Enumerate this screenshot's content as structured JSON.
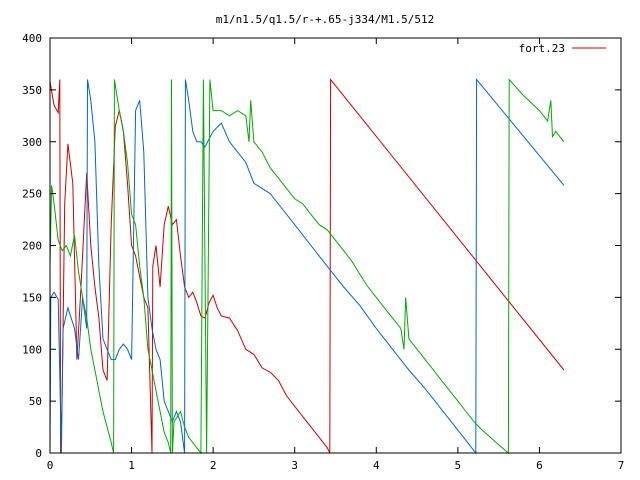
{
  "chart_data": {
    "type": "line",
    "title": "m1/n1.5/q1.5/r-+.65-j334/M1.5/512",
    "xlabel": "",
    "ylabel": "",
    "xlim": [
      0,
      7
    ],
    "ylim": [
      0,
      400
    ],
    "x_ticks": [
      0,
      1,
      2,
      3,
      4,
      5,
      6,
      7
    ],
    "y_ticks": [
      0,
      50,
      100,
      150,
      200,
      250,
      300,
      350,
      400
    ],
    "grid": false,
    "legend_position": "top-right",
    "series": [
      {
        "name": "fort.23",
        "color": "#cc0000",
        "points": [
          [
            0.0,
            358
          ],
          [
            0.05,
            335
          ],
          [
            0.1,
            328
          ],
          [
            0.12,
            360
          ],
          [
            0.13,
            0
          ],
          [
            0.15,
            60
          ],
          [
            0.18,
            240
          ],
          [
            0.22,
            298
          ],
          [
            0.28,
            260
          ],
          [
            0.33,
            90
          ],
          [
            0.38,
            160
          ],
          [
            0.45,
            270
          ],
          [
            0.5,
            200
          ],
          [
            0.55,
            160
          ],
          [
            0.6,
            130
          ],
          [
            0.65,
            80
          ],
          [
            0.7,
            70
          ],
          [
            0.75,
            220
          ],
          [
            0.8,
            315
          ],
          [
            0.85,
            330
          ],
          [
            0.9,
            310
          ],
          [
            0.95,
            260
          ],
          [
            1.0,
            200
          ],
          [
            1.05,
            190
          ],
          [
            1.1,
            170
          ],
          [
            1.15,
            150
          ],
          [
            1.2,
            140
          ],
          [
            1.25,
            0
          ],
          [
            1.26,
            180
          ],
          [
            1.3,
            200
          ],
          [
            1.35,
            160
          ],
          [
            1.4,
            220
          ],
          [
            1.45,
            238
          ],
          [
            1.5,
            220
          ],
          [
            1.55,
            225
          ],
          [
            1.6,
            190
          ],
          [
            1.65,
            160
          ],
          [
            1.7,
            150
          ],
          [
            1.75,
            155
          ],
          [
            1.8,
            145
          ],
          [
            1.85,
            132
          ],
          [
            1.9,
            130
          ],
          [
            1.95,
            145
          ],
          [
            2.0,
            152
          ],
          [
            2.05,
            140
          ],
          [
            2.1,
            132
          ],
          [
            2.2,
            130
          ],
          [
            2.3,
            118
          ],
          [
            2.4,
            100
          ],
          [
            2.5,
            95
          ],
          [
            2.6,
            82
          ],
          [
            2.7,
            78
          ],
          [
            2.8,
            70
          ],
          [
            2.9,
            55
          ],
          [
            3.0,
            45
          ],
          [
            3.1,
            35
          ],
          [
            3.2,
            25
          ],
          [
            3.3,
            15
          ],
          [
            3.4,
            5
          ],
          [
            3.43,
            0
          ],
          [
            3.44,
            360
          ],
          [
            6.3,
            80
          ]
        ]
      },
      {
        "name": "",
        "color": "#0066cc",
        "points": [
          [
            0.0,
            0
          ],
          [
            0.01,
            150
          ],
          [
            0.05,
            155
          ],
          [
            0.1,
            148
          ],
          [
            0.14,
            0
          ],
          [
            0.16,
            120
          ],
          [
            0.22,
            140
          ],
          [
            0.3,
            120
          ],
          [
            0.35,
            90
          ],
          [
            0.4,
            150
          ],
          [
            0.45,
            120
          ],
          [
            0.46,
            360
          ],
          [
            0.5,
            340
          ],
          [
            0.55,
            300
          ],
          [
            0.6,
            180
          ],
          [
            0.65,
            110
          ],
          [
            0.7,
            100
          ],
          [
            0.75,
            90
          ],
          [
            0.8,
            90
          ],
          [
            0.85,
            100
          ],
          [
            0.9,
            105
          ],
          [
            0.95,
            100
          ],
          [
            1.0,
            90
          ],
          [
            1.05,
            330
          ],
          [
            1.1,
            340
          ],
          [
            1.15,
            290
          ],
          [
            1.2,
            150
          ],
          [
            1.25,
            120
          ],
          [
            1.3,
            100
          ],
          [
            1.35,
            90
          ],
          [
            1.4,
            50
          ],
          [
            1.45,
            40
          ],
          [
            1.5,
            30
          ],
          [
            1.55,
            40
          ],
          [
            1.6,
            30
          ],
          [
            1.65,
            0
          ],
          [
            1.66,
            360
          ],
          [
            1.7,
            340
          ],
          [
            1.75,
            310
          ],
          [
            1.8,
            300
          ],
          [
            1.85,
            300
          ],
          [
            1.9,
            295
          ],
          [
            2.0,
            310
          ],
          [
            2.1,
            318
          ],
          [
            2.2,
            300
          ],
          [
            2.3,
            290
          ],
          [
            2.4,
            280
          ],
          [
            2.5,
            260
          ],
          [
            2.6,
            255
          ],
          [
            2.7,
            250
          ],
          [
            2.8,
            240
          ],
          [
            3.0,
            220
          ],
          [
            3.2,
            200
          ],
          [
            3.4,
            180
          ],
          [
            3.6,
            160
          ],
          [
            3.8,
            142
          ],
          [
            4.0,
            120
          ],
          [
            4.2,
            100
          ],
          [
            4.4,
            80
          ],
          [
            4.6,
            62
          ],
          [
            4.8,
            42
          ],
          [
            5.0,
            22
          ],
          [
            5.22,
            0
          ],
          [
            5.23,
            360
          ],
          [
            6.3,
            258
          ]
        ]
      },
      {
        "name": "",
        "color": "#00aa00",
        "points": [
          [
            0.0,
            180
          ],
          [
            0.02,
            258
          ],
          [
            0.05,
            240
          ],
          [
            0.1,
            205
          ],
          [
            0.15,
            195
          ],
          [
            0.2,
            200
          ],
          [
            0.25,
            190
          ],
          [
            0.3,
            210
          ],
          [
            0.35,
            175
          ],
          [
            0.4,
            150
          ],
          [
            0.45,
            130
          ],
          [
            0.5,
            100
          ],
          [
            0.55,
            80
          ],
          [
            0.6,
            60
          ],
          [
            0.65,
            40
          ],
          [
            0.7,
            25
          ],
          [
            0.75,
            10
          ],
          [
            0.78,
            0
          ],
          [
            0.79,
            360
          ],
          [
            0.85,
            330
          ],
          [
            0.9,
            310
          ],
          [
            0.95,
            280
          ],
          [
            1.0,
            230
          ],
          [
            1.05,
            220
          ],
          [
            1.1,
            180
          ],
          [
            1.15,
            150
          ],
          [
            1.2,
            100
          ],
          [
            1.25,
            80
          ],
          [
            1.3,
            60
          ],
          [
            1.35,
            40
          ],
          [
            1.4,
            20
          ],
          [
            1.45,
            10
          ],
          [
            1.48,
            0
          ],
          [
            1.49,
            360
          ],
          [
            1.5,
            0
          ],
          [
            1.52,
            30
          ],
          [
            1.6,
            40
          ],
          [
            1.65,
            25
          ],
          [
            1.7,
            15
          ],
          [
            1.75,
            10
          ],
          [
            1.8,
            5
          ],
          [
            1.85,
            0
          ],
          [
            1.88,
            360
          ],
          [
            1.92,
            0
          ],
          [
            1.96,
            360
          ],
          [
            2.0,
            330
          ],
          [
            2.1,
            330
          ],
          [
            2.2,
            325
          ],
          [
            2.3,
            330
          ],
          [
            2.4,
            325
          ],
          [
            2.44,
            300
          ],
          [
            2.46,
            340
          ],
          [
            2.5,
            300
          ],
          [
            2.6,
            290
          ],
          [
            2.7,
            275
          ],
          [
            2.8,
            265
          ],
          [
            2.9,
            255
          ],
          [
            3.0,
            245
          ],
          [
            3.1,
            240
          ],
          [
            3.2,
            230
          ],
          [
            3.3,
            220
          ],
          [
            3.4,
            215
          ],
          [
            3.5,
            205
          ],
          [
            3.6,
            195
          ],
          [
            3.7,
            185
          ],
          [
            3.8,
            172
          ],
          [
            3.9,
            160
          ],
          [
            4.0,
            150
          ],
          [
            4.1,
            140
          ],
          [
            4.2,
            130
          ],
          [
            4.3,
            120
          ],
          [
            4.34,
            100
          ],
          [
            4.36,
            150
          ],
          [
            4.4,
            110
          ],
          [
            4.5,
            100
          ],
          [
            4.6,
            90
          ],
          [
            4.7,
            80
          ],
          [
            4.8,
            70
          ],
          [
            4.9,
            60
          ],
          [
            5.0,
            50
          ],
          [
            5.1,
            40
          ],
          [
            5.2,
            30
          ],
          [
            5.3,
            22
          ],
          [
            5.4,
            15
          ],
          [
            5.5,
            8
          ],
          [
            5.62,
            0
          ],
          [
            5.63,
            360
          ],
          [
            5.8,
            345
          ],
          [
            6.0,
            330
          ],
          [
            6.1,
            320
          ],
          [
            6.14,
            340
          ],
          [
            6.16,
            305
          ],
          [
            6.2,
            310
          ],
          [
            6.3,
            300
          ]
        ]
      }
    ]
  }
}
